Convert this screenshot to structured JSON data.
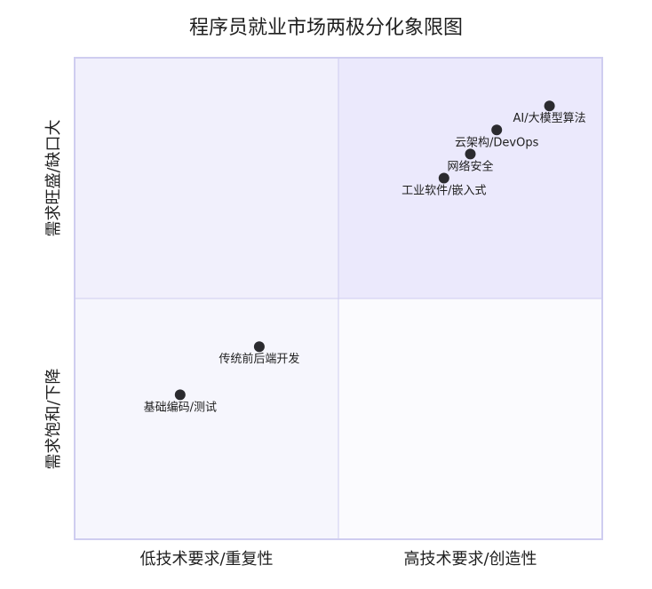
{
  "chart_data": {
    "type": "scatter",
    "title": "程序员就业市场两极分化象限图",
    "x_axis_labels": {
      "left": "低技术要求/重复性",
      "right": "高技术要求/创造性"
    },
    "y_axis_labels": {
      "bottom": "需求饱和/下降",
      "top": "需求旺盛/缺口大"
    },
    "xlim": [
      0,
      1
    ],
    "ylim": [
      0,
      1
    ],
    "quadrant_split": {
      "x": 0.5,
      "y": 0.5
    },
    "grid": false,
    "points": [
      {
        "label": "AI/大模型算法",
        "x": 0.9,
        "y": 0.9
      },
      {
        "label": "云架构/DevOps",
        "x": 0.8,
        "y": 0.85
      },
      {
        "label": "网络安全",
        "x": 0.75,
        "y": 0.8
      },
      {
        "label": "工业软件/嵌入式",
        "x": 0.7,
        "y": 0.75
      },
      {
        "label": "传统前后端开发",
        "x": 0.35,
        "y": 0.4
      },
      {
        "label": "基础编码/测试",
        "x": 0.2,
        "y": 0.3
      }
    ],
    "colors": {
      "quadrant_top_left": "#f1f0fc",
      "quadrant_top_right": "#ebe9fc",
      "quadrant_bottom_left": "#f6f6fd",
      "quadrant_bottom_right": "#fbfbfe",
      "quadrant_border": "#cfcdf0",
      "point": "#2b2b2f"
    }
  }
}
